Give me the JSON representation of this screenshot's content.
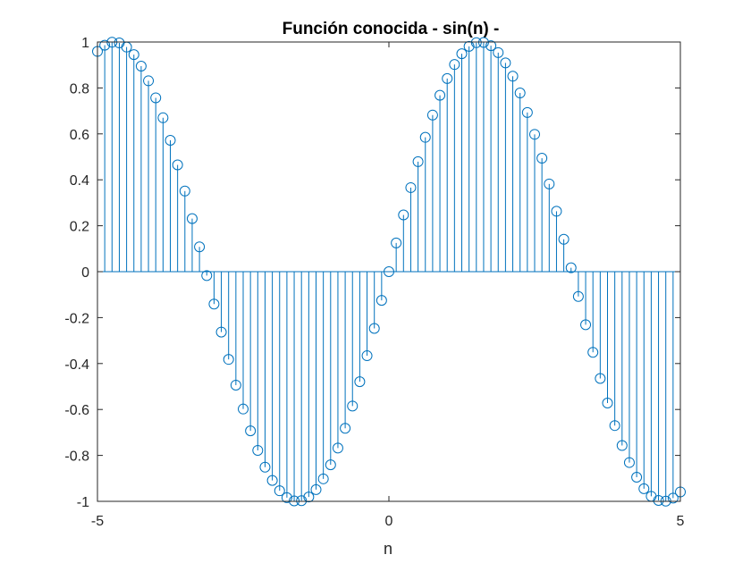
{
  "chart_data": {
    "type": "stem",
    "title": "Función conocida - sin(n) -",
    "xlabel": "n",
    "ylabel": "",
    "xlim": [
      -5,
      5
    ],
    "ylim": [
      -1,
      1
    ],
    "x_ticks": [
      -5,
      0,
      5
    ],
    "x_tick_labels": [
      "-5",
      "0",
      "5"
    ],
    "y_ticks": [
      1,
      0.8,
      0.6,
      0.4,
      0.2,
      0,
      -0.2,
      -0.4,
      -0.6,
      -0.8,
      -1
    ],
    "y_tick_labels": [
      "1",
      "0.8",
      "0.6",
      "0.4",
      "0.2",
      "0",
      "-0.2",
      "-0.4",
      "-0.6",
      "-0.8",
      "-1"
    ],
    "grid": false,
    "box": true,
    "series_color": "#0072BD",
    "function": "sin(n)",
    "x": [
      -5.0,
      -4.875,
      -4.75,
      -4.625,
      -4.5,
      -4.375,
      -4.25,
      -4.125,
      -4.0,
      -3.875,
      -3.75,
      -3.625,
      -3.5,
      -3.375,
      -3.25,
      -3.125,
      -3.0,
      -2.875,
      -2.75,
      -2.625,
      -2.5,
      -2.375,
      -2.25,
      -2.125,
      -2.0,
      -1.875,
      -1.75,
      -1.625,
      -1.5,
      -1.375,
      -1.25,
      -1.125,
      -1.0,
      -0.875,
      -0.75,
      -0.625,
      -0.5,
      -0.375,
      -0.25,
      -0.125,
      0.0,
      0.125,
      0.25,
      0.375,
      0.5,
      0.625,
      0.75,
      0.875,
      1.0,
      1.125,
      1.25,
      1.375,
      1.5,
      1.625,
      1.75,
      1.875,
      2.0,
      2.125,
      2.25,
      2.375,
      2.5,
      2.625,
      2.75,
      2.875,
      3.0,
      3.125,
      3.25,
      3.375,
      3.5,
      3.625,
      3.75,
      3.875,
      4.0,
      4.125,
      4.25,
      4.375,
      4.5,
      4.625,
      4.75,
      4.875,
      5.0
    ],
    "y": [
      0.959,
      0.986,
      0.999,
      0.996,
      0.978,
      0.945,
      0.895,
      0.831,
      0.757,
      0.67,
      0.572,
      0.465,
      0.351,
      0.231,
      0.108,
      -0.017,
      -0.141,
      -0.263,
      -0.382,
      -0.494,
      -0.598,
      -0.693,
      -0.778,
      -0.851,
      -0.909,
      -0.954,
      -0.984,
      -0.998,
      -0.997,
      -0.981,
      -0.949,
      -0.902,
      -0.841,
      -0.768,
      -0.682,
      -0.585,
      -0.479,
      -0.366,
      -0.247,
      -0.125,
      0.0,
      0.125,
      0.247,
      0.366,
      0.479,
      0.585,
      0.682,
      0.768,
      0.841,
      0.902,
      0.949,
      0.981,
      0.997,
      0.998,
      0.984,
      0.954,
      0.909,
      0.851,
      0.778,
      0.693,
      0.598,
      0.494,
      0.382,
      0.263,
      0.141,
      0.017,
      -0.108,
      -0.231,
      -0.351,
      -0.465,
      -0.572,
      -0.67,
      -0.757,
      -0.831,
      -0.895,
      -0.945,
      -0.978,
      -0.996,
      -0.999,
      -0.986,
      -0.959
    ]
  }
}
